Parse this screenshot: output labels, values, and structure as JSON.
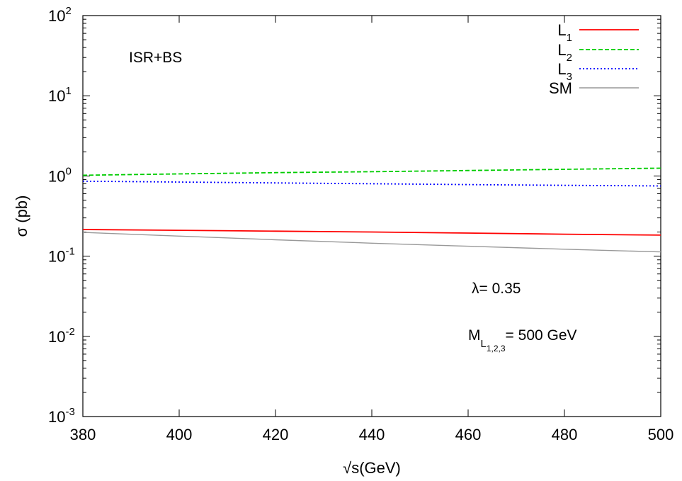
{
  "chart_data": {
    "type": "line",
    "xlabel": "√s(GeV)",
    "ylabel": "σ (pb)",
    "xlim": [
      380,
      500
    ],
    "ylim": [
      0.001,
      100
    ],
    "yscale": "log",
    "grid": false,
    "legend_position": "top-right",
    "x_ticks": [
      "380",
      "400",
      "420",
      "440",
      "460",
      "480",
      "500"
    ],
    "y_ticks": [
      {
        "base": "10",
        "exp": "-3"
      },
      {
        "base": "10",
        "exp": "-2"
      },
      {
        "base": "10",
        "exp": "-1"
      },
      {
        "base": "10",
        "exp": "0"
      },
      {
        "base": "10",
        "exp": "1"
      },
      {
        "base": "10",
        "exp": "2"
      }
    ],
    "series": [
      {
        "name": "L1",
        "label_main": "L",
        "label_sub": "1",
        "color": "#ff0000",
        "dash": "solid",
        "x": [
          380,
          400,
          420,
          440,
          460,
          480,
          500
        ],
        "y": [
          0.215,
          0.21,
          0.205,
          0.2,
          0.194,
          0.188,
          0.183
        ]
      },
      {
        "name": "L2",
        "label_main": "L",
        "label_sub": "2",
        "color": "#00cc00",
        "dash": "dashed",
        "x": [
          380,
          400,
          420,
          440,
          460,
          480,
          500
        ],
        "y": [
          1.02,
          1.06,
          1.1,
          1.13,
          1.17,
          1.21,
          1.25
        ]
      },
      {
        "name": "L3",
        "label_main": "L",
        "label_sub": "3",
        "color": "#0000ff",
        "dash": "dotted",
        "x": [
          380,
          400,
          420,
          440,
          460,
          480,
          500
        ],
        "y": [
          0.86,
          0.84,
          0.82,
          0.8,
          0.78,
          0.765,
          0.75
        ]
      },
      {
        "name": "SM",
        "label_main": "SM",
        "label_sub": "",
        "color": "#999999",
        "dash": "solid",
        "x": [
          380,
          400,
          420,
          440,
          460,
          480,
          500
        ],
        "y": [
          0.198,
          0.178,
          0.16,
          0.145,
          0.133,
          0.122,
          0.113
        ]
      }
    ],
    "annotations": {
      "isr": "ISR+BS",
      "lambda": "λ= 0.35",
      "mass_main": "M",
      "mass_sub_main": "L",
      "mass_sub_sub": "1,2,3",
      "mass_value": "= 500 GeV"
    }
  }
}
